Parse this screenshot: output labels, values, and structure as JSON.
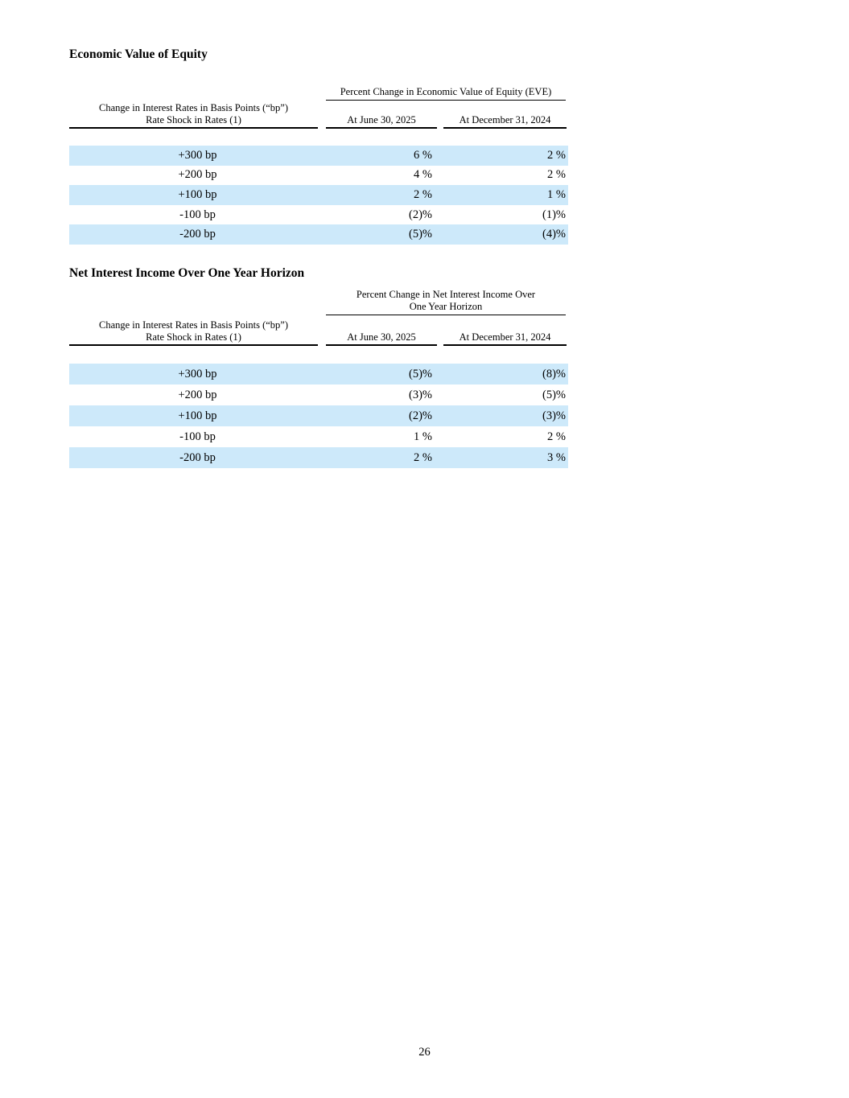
{
  "colors": {
    "stripe": "#cde9fa"
  },
  "page_number": "26",
  "sections": [
    {
      "title": "Economic Value of Equity",
      "table": {
        "span_header_lines": [
          "Percent Change in Economic Value of Equity (EVE)"
        ],
        "row_header_lines": [
          "Change in Interest Rates in Basis Points (“bp”)",
          "Rate Shock in Rates (1)"
        ],
        "col_headers": [
          "At June 30, 2025",
          "At December 31, 2024"
        ],
        "rows": [
          {
            "label": "+300 bp",
            "values": [
              "6 %",
              "2 %"
            ]
          },
          {
            "label": "+200 bp",
            "values": [
              "4 %",
              "2 %"
            ]
          },
          {
            "label": "+100 bp",
            "values": [
              "2 %",
              "1 %"
            ]
          },
          {
            "label": "-100 bp",
            "values": [
              "(2)%",
              "(1)%"
            ]
          },
          {
            "label": "-200 bp",
            "values": [
              "(5)%",
              "(4)%"
            ]
          }
        ]
      }
    },
    {
      "title": "Net Interest Income Over One Year Horizon",
      "table": {
        "span_header_lines": [
          "Percent Change in Net Interest Income Over",
          "One Year Horizon"
        ],
        "row_header_lines": [
          "Change in Interest Rates in Basis Points (“bp”)",
          "Rate Shock in Rates (1)"
        ],
        "col_headers": [
          "At June 30, 2025",
          "At December 31, 2024"
        ],
        "rows": [
          {
            "label": "+300 bp",
            "values": [
              "(5)%",
              "(8)%"
            ]
          },
          {
            "label": "+200 bp",
            "values": [
              "(3)%",
              "(5)%"
            ]
          },
          {
            "label": "+100 bp",
            "values": [
              "(2)%",
              "(3)%"
            ]
          },
          {
            "label": "-100 bp",
            "values": [
              "1 %",
              "2 %"
            ]
          },
          {
            "label": "-200 bp",
            "values": [
              "2 %",
              "3 %"
            ]
          }
        ]
      }
    }
  ]
}
